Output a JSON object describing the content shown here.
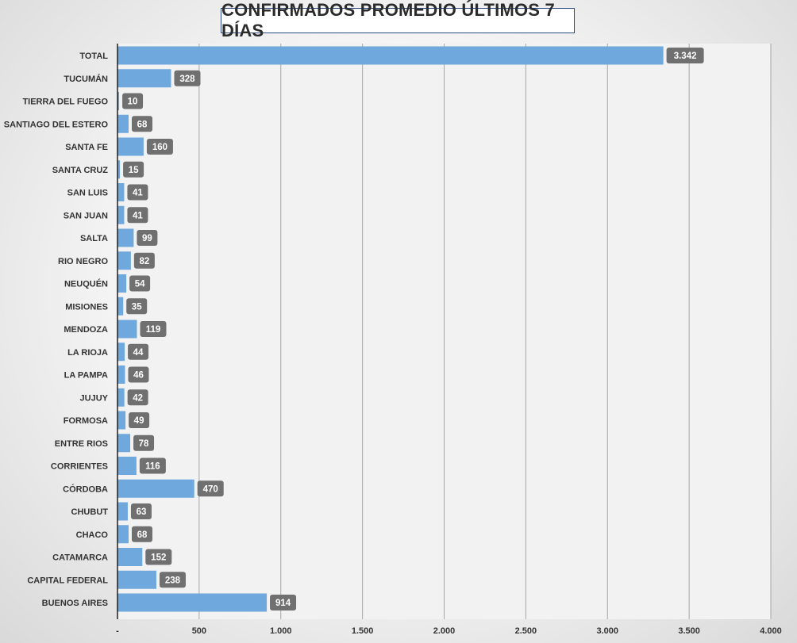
{
  "title": "CONFIRMADOS PROMEDIO ÚLTIMOS 7 DÍAS",
  "colors": {
    "bar": "#6fa8dc",
    "plot_background": "#f2f2f2",
    "gridline": "#a6a6a6",
    "axis": "#1f1f1f",
    "data_label_background": "#707070",
    "data_label_text": "#ffffff"
  },
  "chart_data": {
    "type": "bar",
    "orientation": "horizontal",
    "title": "CONFIRMADOS PROMEDIO ÚLTIMOS 7 DÍAS",
    "categories": [
      "TOTAL",
      "TUCUMÁN",
      "TIERRA DEL FUEGO",
      "SANTIAGO DEL ESTERO",
      "SANTA FE",
      "SANTA CRUZ",
      "SAN LUIS",
      "SAN JUAN",
      "SALTA",
      "RIO NEGRO",
      "NEUQUÉN",
      "MISIONES",
      "MENDOZA",
      "LA RIOJA",
      "LA PAMPA",
      "JUJUY",
      "FORMOSA",
      "ENTRE RIOS",
      "CORRIENTES",
      "CÓRDOBA",
      "CHUBUT",
      "CHACO",
      "CATAMARCA",
      "CAPITAL FEDERAL",
      "BUENOS AIRES"
    ],
    "values": [
      3342,
      328,
      10,
      68,
      160,
      15,
      41,
      41,
      99,
      82,
      54,
      35,
      119,
      44,
      46,
      42,
      49,
      78,
      116,
      470,
      63,
      68,
      152,
      238,
      914
    ],
    "data_labels": [
      "3.342",
      "328",
      "10",
      "68",
      "160",
      "15",
      "41",
      "41",
      "99",
      "82",
      "54",
      "35",
      "119",
      "44",
      "46",
      "42",
      "49",
      "78",
      "116",
      "470",
      "63",
      "68",
      "152",
      "238",
      "914"
    ],
    "xlim": [
      0,
      4000
    ],
    "x_ticks": [
      0,
      500,
      1000,
      1500,
      2000,
      2500,
      3000,
      3500,
      4000
    ],
    "x_tick_labels": [
      "-",
      "500",
      "1.000",
      "1.500",
      "2.000",
      "2.500",
      "3.000",
      "3.500",
      "4.000"
    ],
    "xlabel": "",
    "ylabel": "",
    "grid": "vertical",
    "legend": "none"
  }
}
